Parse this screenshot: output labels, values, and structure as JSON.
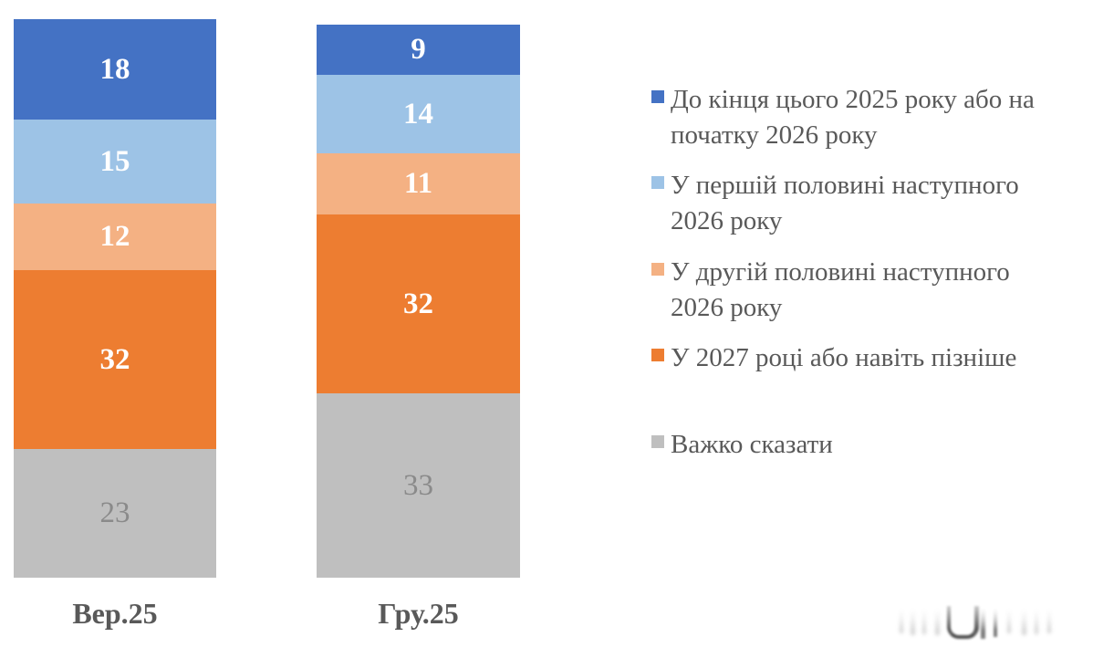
{
  "chart_data": {
    "type": "bar",
    "subtype": "stacked-column",
    "title": "",
    "xlabel": "",
    "ylabel": "",
    "ylim": [
      0,
      100
    ],
    "grid": false,
    "legend_position": "right",
    "categories": [
      "Вер.25",
      "Гру.25"
    ],
    "series": [
      {
        "name": "До кінця цього 2025 року або на\nпочатку 2026 року",
        "color": "#4472C4",
        "values": [
          18,
          9
        ],
        "label_color": "#FFFFFF",
        "label_bold": true
      },
      {
        "name": "У першій половині наступного\n2026 року",
        "color": "#9DC3E6",
        "values": [
          15,
          14
        ],
        "label_color": "#FFFFFF",
        "label_bold": true
      },
      {
        "name": "У другій половині наступного\n2026 року",
        "color": "#F4B183",
        "values": [
          12,
          11
        ],
        "label_color": "#FFFFFF",
        "label_bold": true
      },
      {
        "name": "У 2027 році або навіть пізніше",
        "color": "#ED7D31",
        "values": [
          32,
          32
        ],
        "label_color": "#FFFFFF",
        "label_bold": true
      },
      {
        "name": "Важко сказати",
        "color": "#BFBFBF",
        "values": [
          23,
          33
        ],
        "label_color": "#8A8A8A",
        "label_bold": false
      }
    ]
  },
  "styles": {
    "category_label_color": "#595959",
    "legend_text_color": "#595959",
    "background": "#FFFFFF"
  }
}
